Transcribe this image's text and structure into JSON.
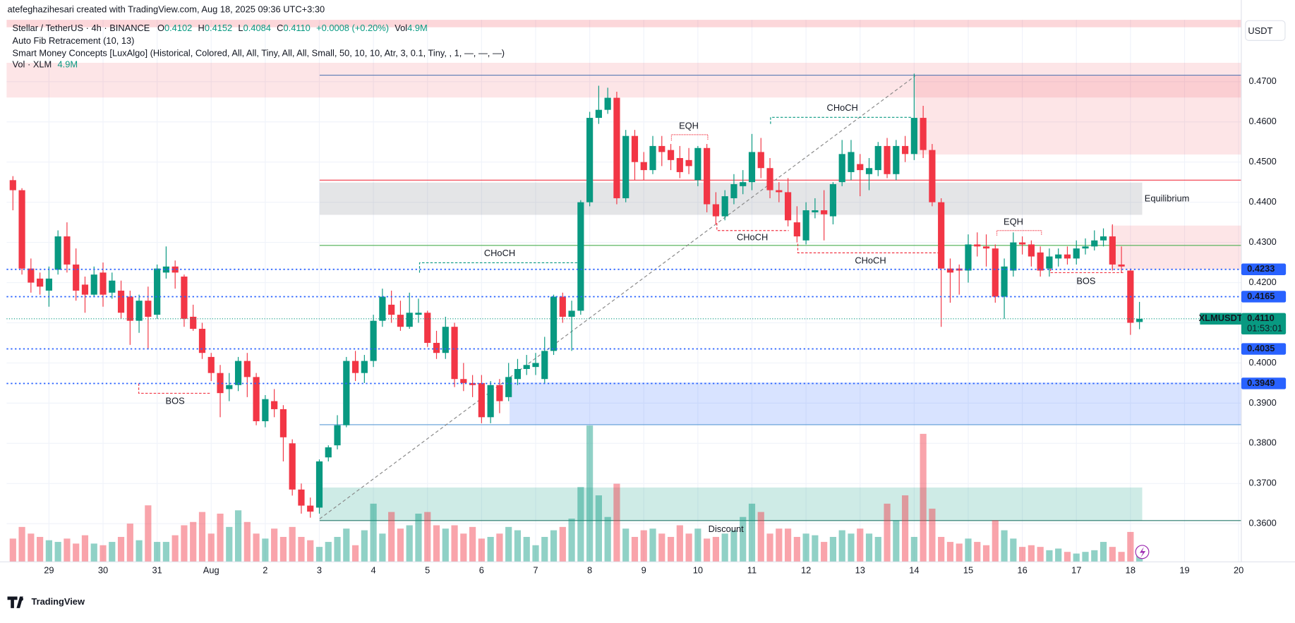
{
  "header": {
    "attribution": "atefeghazihesari created with TradingView.com, Aug 18, 2025 09:36 UTC+3:30",
    "symbol": "Stellar / TetherUS · 4h · BINANCE",
    "ohlc": [
      {
        "key": "O",
        "value": "0.4102"
      },
      {
        "key": "H",
        "value": "0.4152"
      },
      {
        "key": "L",
        "value": "0.4084"
      },
      {
        "key": "C",
        "value": "0.4110"
      }
    ],
    "change": "+0.0008 (+0.20%)",
    "vol_key": "Vol",
    "vol_value": "4.9M",
    "indicators": [
      "Auto Fib Retracement (10, 13)",
      "Smart Money Concepts [LuxAlgo] (Historical, Colored, All, All, Tiny, All, All, Small, 50, 10, 10, Atr, 3, 0.1, Tiny, , 1, —, —, —)"
    ],
    "vol_line": "Vol · XLM",
    "vol_line_value": "4.9M"
  },
  "chart_data": {
    "type": "candlestick",
    "open": [
      0.4455,
      0.443,
      0.4235,
      0.421,
      0.418,
      0.4232,
      0.4315,
      0.4245,
      0.4195,
      0.417,
      0.4225,
      0.4175,
      0.418,
      0.4165,
      0.4105,
      0.4155,
      0.412,
      0.4225,
      0.424,
      0.4215,
      0.4115,
      0.4085,
      0.4015,
      0.3975,
      0.3935,
      0.3945,
      0.4005,
      0.3965,
      0.3855,
      0.3905,
      0.3885,
      0.38,
      0.3685,
      0.3645,
      0.364,
      0.3765,
      0.3795,
      0.3845,
      0.4005,
      0.3975,
      0.4005,
      0.4105,
      0.4145,
      0.412,
      0.409,
      0.412,
      0.4125,
      0.405,
      0.4025,
      0.409,
      0.396,
      0.395,
      0.395,
      0.3865,
      0.3945,
      0.3915,
      0.396,
      0.3985,
      0.399,
      0.396,
      0.403,
      0.4165,
      0.4115,
      0.413,
      0.44,
      0.461,
      0.463,
      0.466,
      0.441,
      0.4565,
      0.45,
      0.448,
      0.454,
      0.453,
      0.451,
      0.4505,
      0.4455,
      0.4535,
      0.4395,
      0.4365,
      0.441,
      0.444,
      0.445,
      0.4525,
      0.4485,
      0.443,
      0.4425,
      0.435,
      0.4305,
      0.4375,
      0.438,
      0.4365,
      0.445,
      0.4475,
      0.4495,
      0.447,
      0.448,
      0.454,
      0.447,
      0.454,
      0.452,
      0.461,
      0.453,
      0.44,
      0.4235,
      0.4235,
      0.423,
      0.4295,
      0.429,
      0.4285,
      0.4165,
      0.423,
      0.43,
      0.4295,
      0.4275,
      0.4235,
      0.426,
      0.427,
      0.426,
      0.4285,
      0.429,
      0.4305,
      0.4315,
      0.4245,
      0.423,
      0.4102
    ],
    "high": [
      0.4465,
      0.4435,
      0.426,
      0.4225,
      0.424,
      0.433,
      0.435,
      0.4285,
      0.4215,
      0.424,
      0.425,
      0.4225,
      0.4205,
      0.418,
      0.417,
      0.419,
      0.4245,
      0.429,
      0.4255,
      0.422,
      0.4145,
      0.41,
      0.4025,
      0.3995,
      0.3975,
      0.4015,
      0.4025,
      0.3975,
      0.392,
      0.3935,
      0.3895,
      0.381,
      0.37,
      0.3665,
      0.376,
      0.3795,
      0.387,
      0.4015,
      0.403,
      0.402,
      0.412,
      0.4185,
      0.418,
      0.4155,
      0.4175,
      0.416,
      0.413,
      0.408,
      0.4115,
      0.41,
      0.4,
      0.397,
      0.397,
      0.3955,
      0.396,
      0.4,
      0.401,
      0.402,
      0.4025,
      0.4065,
      0.417,
      0.4175,
      0.4155,
      0.4405,
      0.4625,
      0.469,
      0.4685,
      0.4675,
      0.458,
      0.458,
      0.4525,
      0.4565,
      0.4565,
      0.4545,
      0.454,
      0.4535,
      0.454,
      0.4545,
      0.4425,
      0.443,
      0.447,
      0.448,
      0.457,
      0.456,
      0.451,
      0.445,
      0.446,
      0.439,
      0.44,
      0.441,
      0.443,
      0.445,
      0.4555,
      0.4555,
      0.452,
      0.451,
      0.455,
      0.456,
      0.4555,
      0.4565,
      0.472,
      0.464,
      0.4545,
      0.441,
      0.426,
      0.4245,
      0.432,
      0.4325,
      0.432,
      0.4295,
      0.426,
      0.4325,
      0.4315,
      0.4305,
      0.429,
      0.4285,
      0.4285,
      0.429,
      0.4305,
      0.431,
      0.433,
      0.4335,
      0.4345,
      0.429,
      0.4235,
      0.4152
    ],
    "low": [
      0.438,
      0.422,
      0.4175,
      0.417,
      0.414,
      0.422,
      0.4225,
      0.4155,
      0.4125,
      0.4165,
      0.414,
      0.416,
      0.411,
      0.4045,
      0.4075,
      0.4035,
      0.411,
      0.421,
      0.4185,
      0.409,
      0.408,
      0.401,
      0.3955,
      0.3865,
      0.3905,
      0.393,
      0.3915,
      0.3845,
      0.384,
      0.3865,
      0.3755,
      0.367,
      0.3625,
      0.3615,
      0.3625,
      0.3755,
      0.3785,
      0.384,
      0.3955,
      0.395,
      0.399,
      0.409,
      0.41,
      0.408,
      0.4085,
      0.41,
      0.404,
      0.401,
      0.401,
      0.394,
      0.393,
      0.3915,
      0.385,
      0.385,
      0.3875,
      0.3905,
      0.3945,
      0.397,
      0.397,
      0.395,
      0.402,
      0.41,
      0.403,
      0.412,
      0.439,
      0.4595,
      0.462,
      0.4395,
      0.44,
      0.4455,
      0.4455,
      0.447,
      0.449,
      0.448,
      0.446,
      0.447,
      0.444,
      0.4375,
      0.4345,
      0.4355,
      0.4395,
      0.442,
      0.443,
      0.446,
      0.441,
      0.44,
      0.434,
      0.43,
      0.4295,
      0.436,
      0.4305,
      0.4345,
      0.444,
      0.4455,
      0.4415,
      0.443,
      0.4465,
      0.446,
      0.4455,
      0.45,
      0.4505,
      0.451,
      0.439,
      0.409,
      0.415,
      0.417,
      0.42,
      0.4265,
      0.424,
      0.415,
      0.411,
      0.4215,
      0.427,
      0.424,
      0.4215,
      0.4215,
      0.424,
      0.4245,
      0.4245,
      0.427,
      0.428,
      0.429,
      0.423,
      0.4225,
      0.407,
      0.4084
    ],
    "close": [
      0.443,
      0.4235,
      0.42,
      0.419,
      0.421,
      0.4315,
      0.4245,
      0.418,
      0.417,
      0.422,
      0.417,
      0.4205,
      0.4125,
      0.4105,
      0.4155,
      0.4115,
      0.4235,
      0.424,
      0.4225,
      0.411,
      0.4085,
      0.4025,
      0.3975,
      0.3925,
      0.3945,
      0.4005,
      0.3965,
      0.3855,
      0.391,
      0.3885,
      0.3815,
      0.3685,
      0.3645,
      0.363,
      0.3755,
      0.379,
      0.3845,
      0.4005,
      0.3975,
      0.4005,
      0.4105,
      0.4165,
      0.412,
      0.409,
      0.4125,
      0.4125,
      0.405,
      0.4025,
      0.409,
      0.396,
      0.395,
      0.3945,
      0.3865,
      0.3945,
      0.3905,
      0.3965,
      0.3985,
      0.3995,
      0.4,
      0.403,
      0.4165,
      0.4115,
      0.413,
      0.44,
      0.461,
      0.463,
      0.466,
      0.441,
      0.4565,
      0.45,
      0.448,
      0.454,
      0.4525,
      0.4505,
      0.4475,
      0.449,
      0.4535,
      0.4395,
      0.4365,
      0.4415,
      0.4445,
      0.445,
      0.4525,
      0.4485,
      0.443,
      0.4425,
      0.4355,
      0.4315,
      0.438,
      0.438,
      0.437,
      0.4445,
      0.452,
      0.4525,
      0.448,
      0.4485,
      0.454,
      0.447,
      0.454,
      0.452,
      0.461,
      0.453,
      0.44,
      0.4235,
      0.4225,
      0.423,
      0.4295,
      0.429,
      0.4285,
      0.4165,
      0.424,
      0.43,
      0.4295,
      0.4265,
      0.423,
      0.4265,
      0.427,
      0.426,
      0.4285,
      0.429,
      0.4305,
      0.4315,
      0.4245,
      0.424,
      0.41,
      0.411
    ],
    "volume": [
      14,
      21,
      17,
      15,
      13,
      12,
      14,
      11,
      16,
      11,
      10,
      12,
      15,
      23,
      13,
      34,
      12,
      12,
      16,
      22,
      24,
      30,
      17,
      29,
      21,
      31,
      24,
      17,
      14,
      20,
      15,
      21,
      15,
      13,
      9,
      12,
      15,
      20,
      10,
      19,
      35,
      17,
      30,
      20,
      22,
      29,
      30,
      22,
      20,
      22,
      17,
      21,
      14,
      15,
      17,
      21,
      19,
      15,
      10,
      15,
      19,
      21,
      26,
      45,
      82,
      40,
      27,
      47,
      20,
      15,
      19,
      20,
      17,
      15,
      22,
      17,
      20,
      14,
      15,
      17,
      19,
      27,
      35,
      30,
      17,
      20,
      20,
      15,
      17,
      16,
      12,
      15,
      19,
      17,
      20,
      17,
      15,
      35,
      25,
      40,
      15,
      77,
      32,
      15,
      12,
      11,
      14,
      12,
      10,
      25,
      19,
      14,
      9,
      10,
      9,
      7,
      8,
      6,
      5,
      6,
      7,
      12,
      9,
      6,
      18,
      4.9
    ],
    "up_color": "#089981",
    "down_color": "#f23645",
    "grid": true,
    "xlim": [
      -0.7,
      136.3
    ],
    "xticks": [
      {
        "value": 4,
        "label": "29"
      },
      {
        "value": 10,
        "label": "30"
      },
      {
        "value": 16,
        "label": "31"
      },
      {
        "value": 22,
        "label": "Aug"
      },
      {
        "value": 28,
        "label": "2"
      },
      {
        "value": 34,
        "label": "3"
      },
      {
        "value": 40,
        "label": "4"
      },
      {
        "value": 46,
        "label": "5"
      },
      {
        "value": 52,
        "label": "6"
      },
      {
        "value": 58,
        "label": "7"
      },
      {
        "value": 64,
        "label": "8"
      },
      {
        "value": 70,
        "label": "9"
      },
      {
        "value": 76,
        "label": "10"
      },
      {
        "value": 82,
        "label": "11"
      },
      {
        "value": 88,
        "label": "12"
      },
      {
        "value": 94,
        "label": "13"
      },
      {
        "value": 100,
        "label": "14"
      },
      {
        "value": 106,
        "label": "15"
      },
      {
        "value": 112,
        "label": "16"
      },
      {
        "value": 118,
        "label": "17"
      },
      {
        "value": 124,
        "label": "18"
      },
      {
        "value": 130,
        "label": "19"
      },
      {
        "value": 136,
        "label": "20"
      }
    ],
    "ylim": [
      0.3505,
      0.4854
    ],
    "yticks": [
      {
        "value": 0.36,
        "label": "0.3600"
      },
      {
        "value": 0.37,
        "label": "0.3700"
      },
      {
        "value": 0.38,
        "label": "0.3800"
      },
      {
        "value": 0.39,
        "label": "0.3900"
      },
      {
        "value": 0.4,
        "label": "0.4000"
      },
      {
        "value": 0.41,
        "label": "0.4100"
      },
      {
        "value": 0.42,
        "label": "0.4200"
      },
      {
        "value": 0.43,
        "label": "0.4300"
      },
      {
        "value": 0.44,
        "label": "0.4400"
      },
      {
        "value": 0.45,
        "label": "0.4500"
      },
      {
        "value": 0.46,
        "label": "0.4600"
      },
      {
        "value": 0.47,
        "label": "0.4700"
      }
    ],
    "price_lines": [
      {
        "value": 0.4233,
        "color": "#2962ff"
      },
      {
        "value": 0.4165,
        "color": "#2962ff"
      },
      {
        "value": 0.4035,
        "color": "#2962ff"
      },
      {
        "value": 0.3949,
        "color": "#2962ff"
      }
    ],
    "current_price": {
      "value": 0.411,
      "label": "0.4110",
      "symbol": "XLMUSDT",
      "countdown": "01:53:01",
      "color": "#089981"
    },
    "currency": "USDT",
    "annotations": [
      "CHoCH",
      "CHoCH",
      "EQH",
      "CHoCH",
      "CHoCH",
      "EQH",
      "BOS",
      "BOS",
      "Equilibrium",
      "Discount"
    ]
  },
  "footer": {
    "brand": "TradingView"
  }
}
